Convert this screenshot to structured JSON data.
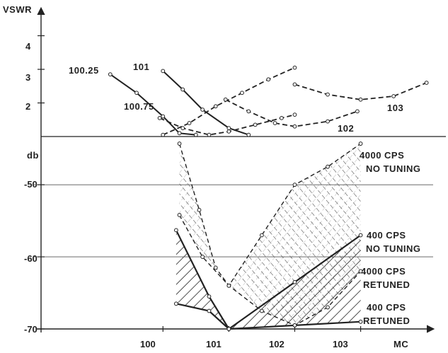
{
  "chart_data": [
    {
      "type": "line",
      "ylabel": "VSWR",
      "xlabel": "MC",
      "yticks": [
        "4",
        "3",
        "2"
      ],
      "ylim": [
        1,
        4.6
      ],
      "xlim": [
        98.15,
        104.1
      ],
      "grid": false,
      "series": [
        {
          "name": "100.25",
          "style": "solid",
          "x": [
            99.2,
            99.6,
            100.0,
            100.25,
            100.5
          ],
          "y": [
            2.85,
            2.3,
            1.6,
            1.1,
            1.05
          ]
        },
        {
          "name": "101",
          "style": "solid",
          "x": [
            100.0,
            100.3,
            100.6,
            101.0,
            101.3
          ],
          "y": [
            2.95,
            2.4,
            1.8,
            1.25,
            1.05
          ]
        },
        {
          "name": "100.75",
          "style": "dashed",
          "x": [
            99.95,
            100.3,
            100.7,
            101.0,
            101.4,
            101.8,
            102.0
          ],
          "y": [
            1.55,
            1.25,
            1.05,
            1.15,
            1.35,
            1.55,
            1.65
          ]
        },
        {
          "name": "",
          "style": "dashed",
          "x": [
            100.0,
            100.4,
            100.8,
            101.2,
            101.6,
            102.0
          ],
          "y": [
            1.05,
            1.4,
            1.9,
            2.3,
            2.7,
            3.05
          ]
        },
        {
          "name": "102",
          "style": "dashed",
          "x": [
            100.95,
            101.3,
            101.7,
            102.0,
            102.5,
            102.95
          ],
          "y": [
            2.1,
            1.75,
            1.4,
            1.3,
            1.45,
            1.75
          ]
        },
        {
          "name": "103",
          "style": "dashed",
          "x": [
            102.0,
            102.5,
            103.0,
            103.5,
            104.0
          ],
          "y": [
            2.55,
            2.25,
            2.1,
            2.2,
            2.6
          ]
        }
      ],
      "labels": [
        "100.25",
        "101",
        "100.75",
        "102",
        "103"
      ]
    },
    {
      "type": "area",
      "ylabel": "db",
      "xlabel": "MC",
      "xticks": [
        "100",
        "101",
        "102",
        "103"
      ],
      "yticks": [
        "-50",
        "-60",
        "-70"
      ],
      "ylim": [
        -70,
        -44
      ],
      "xlim": [
        98.15,
        104.1
      ],
      "grid": true,
      "series": [
        {
          "name": "4000 CPS NO TUNING",
          "style": "dashed",
          "x": [
            100.25,
            100.55,
            100.8,
            101.0,
            101.5,
            102.0,
            102.5,
            103.0
          ],
          "y": [
            -44.3,
            -53.5,
            -61.5,
            -64,
            -57,
            -50,
            -47.5,
            -44.3
          ]
        },
        {
          "name": "400 CPS NO TUNING",
          "style": "solid",
          "x": [
            101.0,
            102.0,
            103.0
          ],
          "y": [
            -70,
            -63.5,
            -57
          ]
        },
        {
          "name": "4000 CPS RETUNED",
          "style": "dashed",
          "x": [
            100.25,
            100.6,
            101.0,
            101.5,
            102.0,
            102.5,
            103.0
          ],
          "y": [
            -54.2,
            -60,
            -64,
            -67.5,
            -69.5,
            -67,
            -62
          ]
        },
        {
          "name": "400 CPS RETUNED",
          "style": "solid",
          "x": [
            100.2,
            100.7,
            101.0,
            102.0,
            103.0
          ],
          "y": [
            -66.5,
            -67.5,
            -70,
            -69.5,
            -69
          ]
        },
        {
          "name": "",
          "style": "solid",
          "x": [
            100.2,
            100.7,
            101.0
          ],
          "y": [
            -56.3,
            -65.5,
            -70
          ]
        }
      ],
      "labels": [
        "4000 CPS",
        "NO TUNING",
        "400 CPS",
        "NO TUNING",
        "4000 CPS",
        "RETUNED",
        "400 CPS",
        "RETUNED"
      ]
    }
  ]
}
